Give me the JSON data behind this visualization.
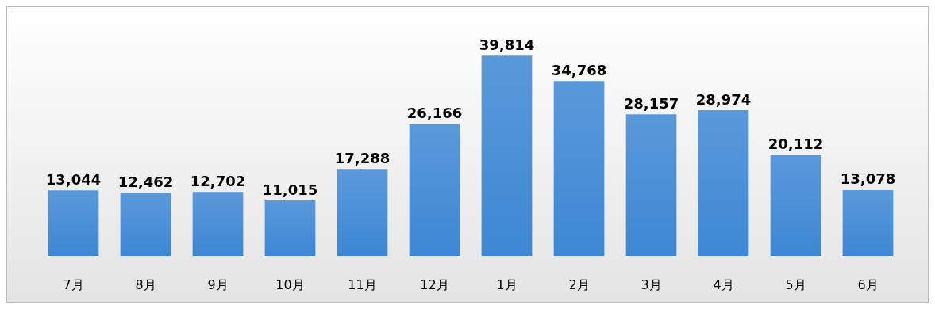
{
  "chart_data": {
    "type": "bar",
    "categories": [
      "7月",
      "8月",
      "9月",
      "10月",
      "11月",
      "12月",
      "1月",
      "2月",
      "3月",
      "4月",
      "5月",
      "6月"
    ],
    "values": [
      13044,
      12462,
      12702,
      11015,
      17288,
      26166,
      39814,
      34768,
      28157,
      28974,
      20112,
      13078
    ],
    "value_labels": [
      "13,044",
      "12,462",
      "12,702",
      "11,015",
      "17,288",
      "26,166",
      "39,814",
      "34,768",
      "28,157",
      "28,974",
      "20,112",
      "13,078"
    ],
    "color": "#3d87d4"
  }
}
